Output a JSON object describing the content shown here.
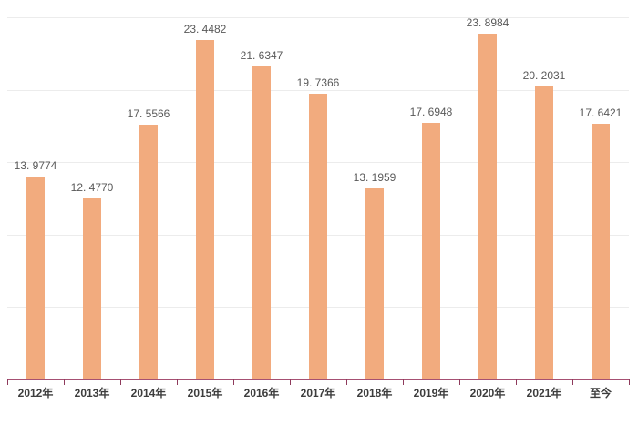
{
  "chart_data": {
    "type": "bar",
    "title": "",
    "xlabel": "",
    "ylabel": "",
    "categories": [
      "2012年",
      "2013年",
      "2014年",
      "2015年",
      "2016年",
      "2017年",
      "2018年",
      "2019年",
      "2020年",
      "2021年",
      "至今"
    ],
    "values": [
      13.9774,
      12.477,
      17.5566,
      23.4482,
      21.6347,
      19.7366,
      13.1959,
      17.6948,
      23.8984,
      20.2031,
      17.6421
    ],
    "value_labels": [
      "13. 9774",
      "12. 4770",
      "17. 5566",
      "23. 4482",
      "21. 6347",
      "19. 7366",
      "13. 1959",
      "17. 6948",
      "23. 8984",
      "20. 2031",
      "17. 6421"
    ],
    "ylim": [
      0,
      25
    ],
    "gridline_values": [
      5,
      10,
      15,
      20,
      25
    ],
    "grid": true,
    "legend_position": "none"
  },
  "style": {
    "background": "#FFFFFF",
    "bar_color": "#F2AB7E",
    "axis_line_color": "#A65072",
    "tick_color": "#8E3A5C",
    "grid_color": "#ECECEC",
    "value_label_color": "#595959",
    "category_label_color": "#3D3D3D"
  }
}
